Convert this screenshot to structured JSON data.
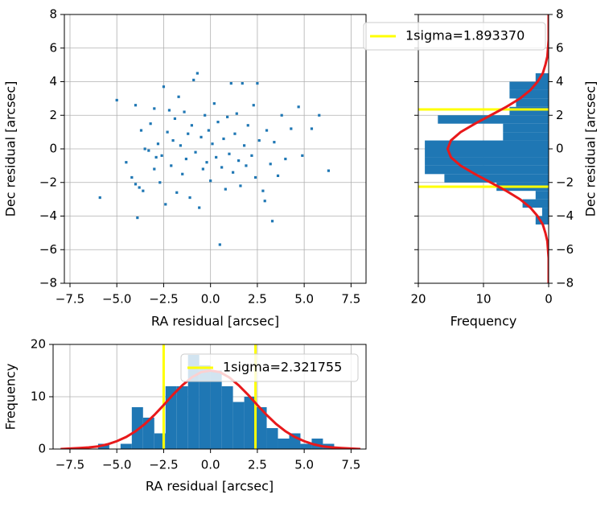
{
  "chart_data": [
    {
      "type": "scatter",
      "xlabel": "RA residual [arcsec]",
      "ylabel": "Dec residual [arcsec]",
      "color": "#1f77b4",
      "grid": true,
      "x": [
        -5.9,
        -5.0,
        -4.0,
        -3.9,
        -4.5,
        -4.2,
        -4.0,
        -3.8,
        -3.6,
        -3.5,
        -3.3,
        -3.2,
        -3.0,
        -3.0,
        -2.9,
        -2.8,
        -2.7,
        -2.6,
        -2.5,
        -2.4,
        -2.3,
        -2.2,
        -2.1,
        -2.0,
        -1.9,
        -1.8,
        -1.7,
        -1.6,
        -1.5,
        -1.4,
        -1.3,
        -1.2,
        -1.1,
        -1.0,
        -0.9,
        -0.8,
        -0.7,
        -0.6,
        -0.5,
        -0.4,
        -0.3,
        -0.2,
        -0.1,
        0,
        0.1,
        0.2,
        0.3,
        0.4,
        0.5,
        0.6,
        0.7,
        0.8,
        0.9,
        1.0,
        1.1,
        1.2,
        1.3,
        1.4,
        1.5,
        1.6,
        1.7,
        1.8,
        1.9,
        2.0,
        2.2,
        2.3,
        2.4,
        2.5,
        2.6,
        2.8,
        3.0,
        3.2,
        3.3,
        3.4,
        3.6,
        3.8,
        4.0,
        4.3,
        4.7,
        4.9,
        5.4,
        5.8,
        6.3,
        -3.7,
        2.9
      ],
      "y": [
        -2.9,
        2.9,
        2.6,
        -4.1,
        -0.8,
        -1.7,
        -2.1,
        -2.3,
        -2.5,
        0,
        -0.1,
        1.5,
        2.4,
        -1.2,
        -0.5,
        0.3,
        -2.0,
        -0.4,
        3.7,
        -3.3,
        1.0,
        2.3,
        -1.0,
        0.5,
        1.8,
        -2.6,
        3.1,
        0.2,
        -1.5,
        2.2,
        -0.6,
        0.9,
        -2.9,
        1.4,
        4.1,
        -0.2,
        4.5,
        -3.5,
        0.7,
        -1.2,
        2.0,
        -0.8,
        1.1,
        -1.9,
        0.3,
        2.7,
        -0.5,
        1.6,
        -5.7,
        -1.1,
        0.6,
        -2.4,
        1.9,
        -0.3,
        3.9,
        -1.4,
        0.9,
        2.1,
        -0.7,
        -2.2,
        3.9,
        0.2,
        -1.0,
        1.4,
        -0.4,
        2.6,
        -1.7,
        3.9,
        0.5,
        -2.5,
        1.1,
        -0.9,
        -4.3,
        0.4,
        -1.6,
        2.0,
        -0.6,
        1.2,
        2.5,
        -0.4,
        1.2,
        2.0,
        -1.3,
        1.1,
        -3.1
      ],
      "xlim": [
        -7.8,
        8.3
      ],
      "ylim": [
        -8,
        8
      ],
      "xticks": [
        {
          "value": -7.5,
          "label": "−7.5"
        },
        {
          "value": -5,
          "label": "−5.0"
        },
        {
          "value": -2.5,
          "label": "−2.5"
        },
        {
          "value": 0,
          "label": "0.0"
        },
        2.5,
        {
          "value": 5,
          "label": "5.0"
        },
        7.5
      ],
      "yticks": [
        {
          "value": -8,
          "label": "−8"
        },
        {
          "value": -6,
          "label": "−6"
        },
        {
          "value": -4,
          "label": "−4"
        },
        {
          "value": -2,
          "label": "−2"
        },
        0,
        2,
        4,
        6,
        8
      ]
    },
    {
      "type": "histogram",
      "orientation": "horizontal",
      "xlabel": "Frequency",
      "ylabel": "Dec residual [arcsec]",
      "yaxis_side": "right",
      "color": "#1f77b4",
      "grid": true,
      "bins": [
        -4.5,
        -4.0,
        -3.5,
        -3.0,
        -2.5,
        -2.0,
        -1.5,
        -1.0,
        -0.5,
        0.0,
        0.5,
        1.0,
        1.5,
        2.0,
        2.5,
        3.0,
        3.5,
        4.0,
        4.5
      ],
      "values": [
        2,
        1,
        4,
        2,
        8,
        16,
        19,
        19,
        19,
        19,
        7,
        7,
        17,
        6,
        5,
        6,
        6,
        2
      ],
      "fit": {
        "color": "#e8191b",
        "y": [
          -8,
          -7.5,
          -7,
          -6.5,
          -6,
          -5.5,
          -5,
          -4.5,
          -4,
          -3.5,
          -3,
          -2.5,
          -2,
          -1.5,
          -1,
          -0.5,
          0,
          0.5,
          1,
          1.5,
          2,
          2.5,
          3,
          3.5,
          4,
          4.5,
          5,
          5.5,
          6,
          6.5,
          7,
          7.5,
          8
        ],
        "values": [
          0,
          0,
          0,
          0,
          0.1,
          0.2,
          0.5,
          0.9,
          1.7,
          2.8,
          4.4,
          6.5,
          8.9,
          11.3,
          13.5,
          15.0,
          15.5,
          15.0,
          13.5,
          11.3,
          8.9,
          6.5,
          4.4,
          2.8,
          1.7,
          0.9,
          0.5,
          0.2,
          0.1,
          0,
          0,
          0,
          0
        ]
      },
      "sigma_lines": {
        "name": "1sigma=1.893370",
        "color": "#ffff00",
        "values": [
          -2.25,
          2.35
        ]
      },
      "xlim": [
        20,
        0
      ],
      "ylim": [
        -8,
        8
      ],
      "xticks": [
        20,
        10,
        0
      ],
      "yticks": [
        {
          "value": -8,
          "label": "−8"
        },
        {
          "value": -6,
          "label": "−6"
        },
        {
          "value": -4,
          "label": "−4"
        },
        {
          "value": -2,
          "label": "−2"
        },
        0,
        2,
        4,
        6,
        8
      ]
    },
    {
      "type": "histogram",
      "orientation": "vertical",
      "xlabel": "RA residual [arcsec]",
      "ylabel": "Frequency",
      "color": "#1f77b4",
      "grid": true,
      "bins": [
        -6.0,
        -5.4,
        -4.8,
        -4.2,
        -3.6,
        -3.0,
        -2.4,
        -1.8,
        -1.2,
        -0.6,
        0.0,
        0.6,
        1.2,
        1.8,
        2.4,
        3.0,
        3.6,
        4.2,
        4.8,
        5.4,
        6.0,
        6.6
      ],
      "values": [
        1,
        0,
        1,
        8,
        6,
        3,
        12,
        12,
        18,
        16,
        15,
        12,
        9,
        10,
        8,
        4,
        2,
        3,
        1,
        2,
        1
      ],
      "fit": {
        "color": "#e8191b",
        "x": [
          -8,
          -7.5,
          -7,
          -6.5,
          -6,
          -5.5,
          -5,
          -4.5,
          -4,
          -3.5,
          -3,
          -2.5,
          -2,
          -1.5,
          -1,
          -0.5,
          0,
          0.5,
          1,
          1.5,
          2,
          2.5,
          3,
          3.5,
          4,
          4.5,
          5,
          5.5,
          6,
          6.5,
          7,
          7.5,
          8
        ],
        "values": [
          0,
          0.1,
          0.2,
          0.3,
          0.5,
          0.9,
          1.5,
          2.3,
          3.4,
          4.8,
          6.5,
          8.4,
          10.4,
          12.2,
          13.7,
          14.7,
          15.0,
          14.7,
          13.7,
          12.2,
          10.4,
          8.4,
          6.5,
          4.8,
          3.4,
          2.3,
          1.5,
          0.9,
          0.5,
          0.3,
          0.2,
          0.1,
          0
        ]
      },
      "sigma_lines": {
        "name": "1sigma=2.321755",
        "color": "#ffff00",
        "values": [
          -2.5,
          2.4
        ]
      },
      "xlim": [
        -8.4,
        8.3
      ],
      "ylim": [
        0,
        20
      ],
      "xticks": [
        {
          "value": -7.5,
          "label": "−7.5"
        },
        {
          "value": -5,
          "label": "−5.0"
        },
        {
          "value": -2.5,
          "label": "−2.5"
        },
        {
          "value": 0,
          "label": "0.0"
        },
        2.5,
        {
          "value": 5,
          "label": "5.0"
        },
        7.5
      ],
      "yticks": [
        0,
        10,
        20
      ]
    }
  ]
}
